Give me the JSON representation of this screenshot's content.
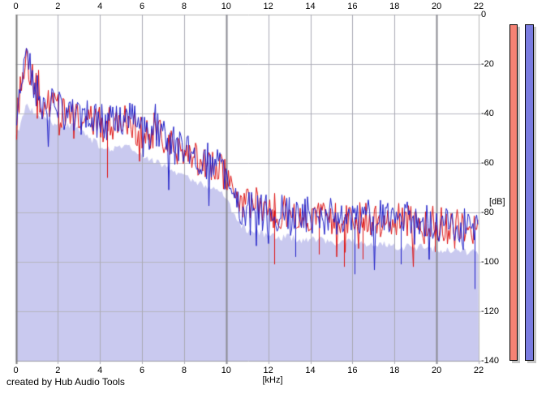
{
  "footer": {
    "credit": "created by Hub Audio Tools"
  },
  "meters": {
    "left": {
      "name": "left-channel-level-meter",
      "color": "#f58274"
    },
    "right": {
      "name": "right-channel-level-meter",
      "color": "#7a7ce0"
    },
    "border_color": "#000000",
    "shadow_color": "#c6c6c6"
  },
  "chart_data": {
    "type": "line",
    "title": "",
    "xlabel": "[kHz]",
    "ylabel": "[dB]",
    "x_range_khz": [
      0,
      22
    ],
    "y_range_db": [
      0,
      -140
    ],
    "x_ticks": [
      0,
      2,
      4,
      6,
      8,
      10,
      12,
      14,
      16,
      18,
      20,
      22
    ],
    "y_ticks": [
      0,
      -20,
      -40,
      -60,
      -80,
      -100,
      -120,
      -140
    ],
    "grid": true,
    "grid_colors": {
      "minor": "#aaaab4",
      "major_vertical": "#8a8a92",
      "axis_left": "#7a7a7a",
      "horizontal": "#b6b6c0",
      "border": "#b4b4b4",
      "bottom": "#9a9aa2"
    },
    "legend": "none",
    "series": [
      {
        "name": "left-channel-spectrum",
        "color": "#dd1414",
        "x_step_khz": 0.25,
        "jitter_db": 7,
        "seed": 1234,
        "midline_db": [
          -48,
          -26,
          -20,
          -26,
          -31,
          -36,
          -35,
          -38,
          -39,
          -41,
          -40,
          -41,
          -43,
          -42,
          -44,
          -43,
          -44,
          -45,
          -44,
          -43,
          -44,
          -42,
          -44,
          -46,
          -48,
          -49,
          -50,
          -48,
          -51,
          -53,
          -54,
          -55,
          -54,
          -54,
          -57,
          -59,
          -60,
          -61,
          -62,
          -63,
          -65,
          -69,
          -74,
          -75,
          -76,
          -76,
          -77,
          -77,
          -78,
          -79,
          -80,
          -80,
          -81,
          -80,
          -81,
          -80,
          -81,
          -81,
          -82,
          -81,
          -82,
          -81,
          -82,
          -82,
          -81,
          -82,
          -82,
          -83,
          -82,
          -83,
          -83,
          -82,
          -83,
          -83,
          -84,
          -83,
          -84,
          -84,
          -83,
          -84,
          -84,
          -85,
          -84,
          -85,
          -84,
          -85,
          -86,
          -86,
          -87
        ],
        "deep_dips": [
          [
            4.35,
            -66
          ],
          [
            12.3,
            -101
          ],
          [
            14.4,
            -97
          ],
          [
            15.6,
            -102
          ],
          [
            16.5,
            -99
          ],
          [
            19.9,
            -96
          ]
        ]
      },
      {
        "name": "right-channel-spectrum",
        "color": "#1e1ec8",
        "x_step_khz": 0.25,
        "jitter_db": 7.5,
        "seed": 9876,
        "midline_db": [
          -50,
          -24,
          -18,
          -24,
          -30,
          -35,
          -34,
          -37,
          -38,
          -40,
          -41,
          -40,
          -42,
          -41,
          -43,
          -42,
          -43,
          -44,
          -43,
          -42,
          -43,
          -41,
          -43,
          -45,
          -47,
          -48,
          -49,
          -47,
          -50,
          -52,
          -53,
          -54,
          -55,
          -53,
          -56,
          -58,
          -59,
          -60,
          -61,
          -62,
          -64,
          -70,
          -76,
          -78,
          -79,
          -79,
          -80,
          -79,
          -80,
          -80,
          -81,
          -80,
          -81,
          -81,
          -80,
          -81,
          -81,
          -82,
          -81,
          -82,
          -81,
          -82,
          -82,
          -81,
          -82,
          -82,
          -83,
          -82,
          -83,
          -82,
          -83,
          -83,
          -83,
          -84,
          -83,
          -84,
          -84,
          -83,
          -84,
          -84,
          -84,
          -85,
          -84,
          -85,
          -85,
          -85,
          -86,
          -87,
          -88
        ],
        "deep_dips": [
          [
            13.3,
            -98
          ],
          [
            16.1,
            -105
          ],
          [
            18.3,
            -101
          ],
          [
            21.8,
            -111
          ]
        ]
      }
    ],
    "fill_series": {
      "name": "average-spectrum-fill",
      "color": "#c9c9ef",
      "x_step_khz": 0.5,
      "jitter_db": 1.5,
      "seed": 7771,
      "values_db": [
        -50,
        -36,
        -41,
        -43,
        -44,
        -45,
        -46,
        -50,
        -53,
        -54,
        -53,
        -54,
        -57,
        -59,
        -61,
        -63,
        -65,
        -67,
        -69,
        -71,
        -74,
        -84,
        -87,
        -88,
        -89,
        -90,
        -90,
        -91,
        -91,
        -91,
        -92,
        -92,
        -92,
        -93,
        -93,
        -93,
        -94,
        -94,
        -94,
        -94,
        -95,
        -95,
        -95,
        -96,
        -96
      ]
    }
  }
}
